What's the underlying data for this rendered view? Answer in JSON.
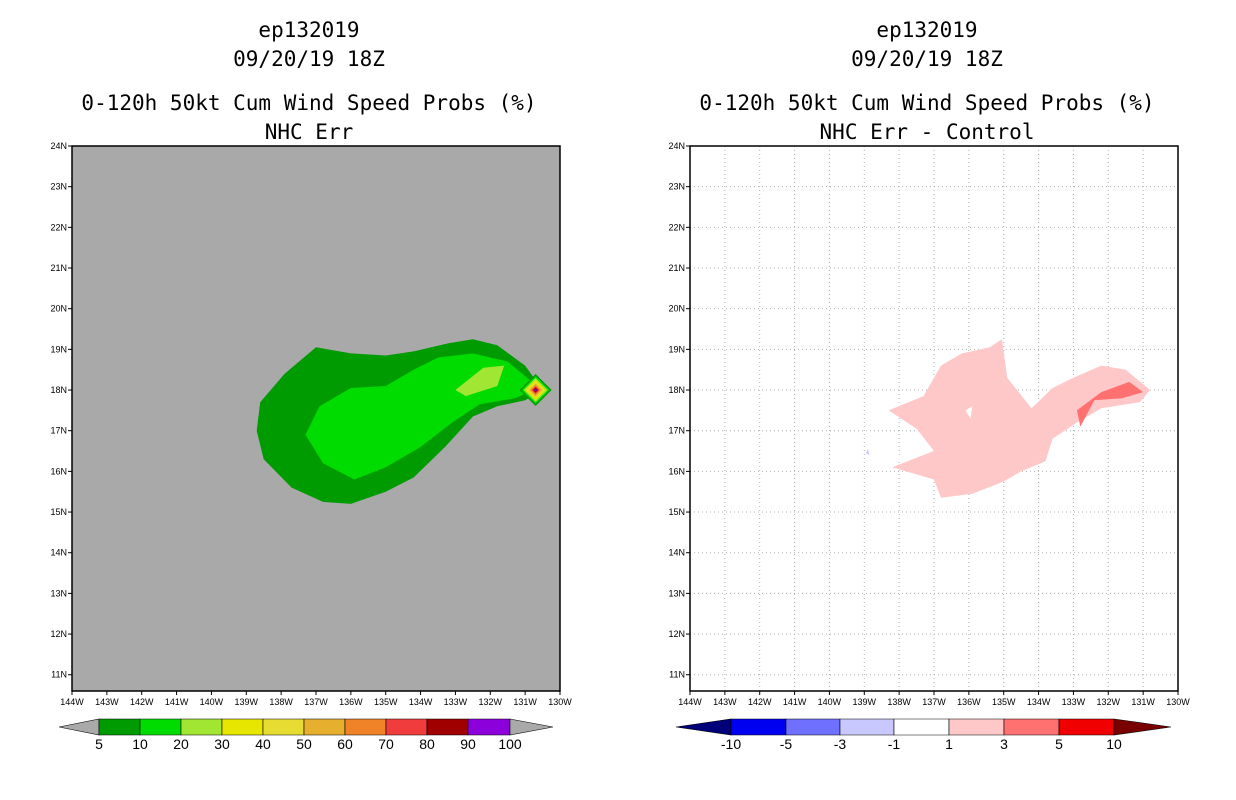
{
  "chart_data": [
    {
      "type": "contour-map",
      "storm_id": "ep132019",
      "datetime": "09/20/19 18Z",
      "title": "0-120h 50kt Cum Wind Speed Probs (%)",
      "subtitle": "NHC Err",
      "lon_labels": [
        "144W",
        "143W",
        "142W",
        "141W",
        "140W",
        "139W",
        "138W",
        "137W",
        "136W",
        "135W",
        "134W",
        "133W",
        "132W",
        "131W",
        "130W"
      ],
      "lat_labels": [
        "24N",
        "23N",
        "22N",
        "21N",
        "20N",
        "19N",
        "18N",
        "17N",
        "16N",
        "15N",
        "14N",
        "13N",
        "12N",
        "11N"
      ],
      "lon_range": [
        -144,
        -130
      ],
      "lat_range": [
        10.6,
        24
      ],
      "background": "#a9a9a9",
      "colorbar": {
        "labels": [
          "5",
          "10",
          "20",
          "30",
          "40",
          "50",
          "60",
          "70",
          "80",
          "90",
          "100"
        ],
        "colors": [
          "#a9a9a9",
          "#009b00",
          "#00dc00",
          "#a0e632",
          "#e6e600",
          "#e6dc32",
          "#e6af2d",
          "#f08228",
          "#f03c3c",
          "#a00000",
          "#8c00dc",
          "#a9a9a9"
        ]
      },
      "contours": [
        {
          "level": "5-10",
          "color": "#009b00",
          "points": [
            [
              -137.9,
              18.4
            ],
            [
              -137.0,
              19.05
            ],
            [
              -136.0,
              18.9
            ],
            [
              -135.0,
              18.85
            ],
            [
              -134.2,
              18.95
            ],
            [
              -133.2,
              19.15
            ],
            [
              -132.5,
              19.25
            ],
            [
              -131.8,
              19.1
            ],
            [
              -131.0,
              18.6
            ],
            [
              -130.5,
              18.0
            ],
            [
              -131.0,
              17.75
            ],
            [
              -131.8,
              17.6
            ],
            [
              -132.5,
              17.35
            ],
            [
              -133.3,
              16.6
            ],
            [
              -134.2,
              15.85
            ],
            [
              -135.0,
              15.5
            ],
            [
              -136.0,
              15.2
            ],
            [
              -136.8,
              15.25
            ],
            [
              -137.7,
              15.6
            ],
            [
              -138.5,
              16.3
            ],
            [
              -138.7,
              17.0
            ],
            [
              -138.6,
              17.7
            ]
          ]
        },
        {
          "level": "10-20",
          "color": "#00dc00",
          "points": [
            [
              -136.9,
              17.6
            ],
            [
              -136.0,
              18.05
            ],
            [
              -135.0,
              18.1
            ],
            [
              -134.2,
              18.5
            ],
            [
              -133.5,
              18.8
            ],
            [
              -132.5,
              18.9
            ],
            [
              -131.5,
              18.7
            ],
            [
              -130.6,
              18.05
            ],
            [
              -131.3,
              17.8
            ],
            [
              -132.3,
              17.65
            ],
            [
              -133.1,
              17.2
            ],
            [
              -134.0,
              16.6
            ],
            [
              -135.0,
              16.1
            ],
            [
              -135.9,
              15.8
            ],
            [
              -136.8,
              16.2
            ],
            [
              -137.3,
              16.9
            ]
          ]
        },
        {
          "level": "20-30",
          "color": "#a0e632",
          "points": [
            [
              -133.0,
              18.0
            ],
            [
              -132.2,
              18.55
            ],
            [
              -131.6,
              18.6
            ],
            [
              -131.8,
              18.1
            ],
            [
              -132.7,
              17.85
            ]
          ]
        }
      ],
      "peak": {
        "lon": -130.7,
        "lat": 18.0,
        "max_level": "90-100"
      }
    },
    {
      "type": "contour-map",
      "storm_id": "ep132019",
      "datetime": "09/20/19 18Z",
      "title": "0-120h 50kt Cum Wind Speed Probs (%)",
      "subtitle": "NHC Err - Control",
      "lon_labels": [
        "144W",
        "143W",
        "142W",
        "141W",
        "140W",
        "139W",
        "138W",
        "137W",
        "136W",
        "135W",
        "134W",
        "133W",
        "132W",
        "131W",
        "130W"
      ],
      "lat_labels": [
        "24N",
        "23N",
        "22N",
        "21N",
        "20N",
        "19N",
        "18N",
        "17N",
        "16N",
        "15N",
        "14N",
        "13N",
        "12N",
        "11N"
      ],
      "lon_range": [
        -144,
        -130
      ],
      "lat_range": [
        10.6,
        24
      ],
      "grid": true,
      "colorbar": {
        "labels": [
          "-10",
          "-5",
          "-3",
          "-1",
          "1",
          "3",
          "5",
          "10"
        ],
        "colors": [
          "#000078",
          "#0000f0",
          "#7070ff",
          "#c8c8ff",
          "#ffffff",
          "#ffc8c8",
          "#ff7070",
          "#f00000",
          "#780000"
        ]
      },
      "contours": [
        {
          "level": "1-3",
          "color": "#ffc8c8",
          "points": [
            [
              -137.3,
              17.85
            ],
            [
              -136.8,
              18.6
            ],
            [
              -136.2,
              18.9
            ],
            [
              -135.4,
              19.05
            ],
            [
              -135.05,
              19.25
            ],
            [
              -134.9,
              18.3
            ],
            [
              -134.2,
              17.55
            ],
            [
              -133.6,
              18.05
            ],
            [
              -133.0,
              18.3
            ],
            [
              -132.2,
              18.6
            ],
            [
              -131.5,
              18.5
            ],
            [
              -130.8,
              18.0
            ],
            [
              -131.1,
              17.7
            ],
            [
              -132.2,
              17.55
            ],
            [
              -132.9,
              17.2
            ],
            [
              -133.6,
              16.8
            ],
            [
              -133.8,
              16.25
            ],
            [
              -134.5,
              16.0
            ],
            [
              -135.0,
              15.75
            ],
            [
              -135.9,
              15.45
            ],
            [
              -136.8,
              15.35
            ],
            [
              -137.0,
              15.8
            ],
            [
              -138.2,
              16.1
            ],
            [
              -137.0,
              16.5
            ],
            [
              -137.5,
              17.05
            ],
            [
              -138.3,
              17.5
            ]
          ]
        },
        {
          "level": "3-5",
          "color": "#ff7070",
          "points": [
            [
              -132.9,
              17.5
            ],
            [
              -132.2,
              17.95
            ],
            [
              -131.4,
              18.2
            ],
            [
              -131.0,
              17.95
            ],
            [
              -131.6,
              17.8
            ],
            [
              -132.4,
              17.75
            ],
            [
              -132.8,
              17.1
            ]
          ]
        },
        {
          "level": "-3--1",
          "color": "#c8c8ff",
          "points": [
            [
              -138.9,
              16.55
            ],
            [
              -138.85,
              16.4
            ],
            [
              -138.95,
              16.45
            ]
          ]
        }
      ],
      "holes": [
        {
          "points": [
            [
              -136.1,
              17.5
            ],
            [
              -135.9,
              17.6
            ],
            [
              -135.95,
              17.3
            ]
          ]
        },
        {
          "points": [
            [
              -138.05,
              16.5
            ],
            [
              -137.95,
              16.3
            ],
            [
              -138.1,
              16.2
            ]
          ]
        }
      ]
    }
  ]
}
